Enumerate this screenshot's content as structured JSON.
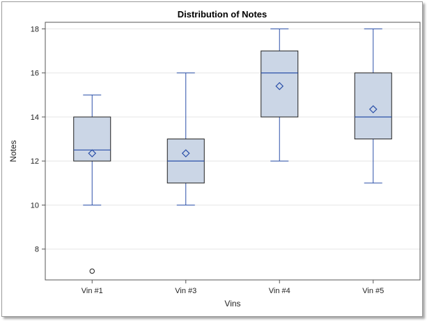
{
  "chart_data": {
    "type": "boxplot",
    "title": "Distribution of Notes",
    "xlabel": "Vins",
    "ylabel": "Notes",
    "ylim": [
      6.6,
      18.3
    ],
    "yticks": [
      8,
      10,
      12,
      14,
      16,
      18
    ],
    "grid": true,
    "categories": [
      "Vin #1",
      "Vin #3",
      "Vin #4",
      "Vin #5"
    ],
    "boxes": [
      {
        "category": "Vin #1",
        "whisker_low": 10,
        "q1": 12,
        "median": 12.5,
        "q3": 14,
        "whisker_high": 15,
        "mean": 12.35,
        "outliers": [
          7
        ]
      },
      {
        "category": "Vin #3",
        "whisker_low": 10,
        "q1": 11,
        "median": 12,
        "q3": 13,
        "whisker_high": 16,
        "mean": 12.35,
        "outliers": []
      },
      {
        "category": "Vin #4",
        "whisker_low": 12,
        "q1": 14,
        "median": 16,
        "q3": 17,
        "whisker_high": 18,
        "mean": 15.4,
        "outliers": []
      },
      {
        "category": "Vin #5",
        "whisker_low": 11,
        "q1": 13,
        "median": 14,
        "q3": 16,
        "whisker_high": 18,
        "mean": 14.35,
        "outliers": []
      }
    ],
    "colors": {
      "box_fill": "#cbd6e6",
      "box_border": "#1f1f1f",
      "line": "#2a4fa8",
      "grid": "#e6e6e6",
      "axis": "#555555"
    }
  }
}
